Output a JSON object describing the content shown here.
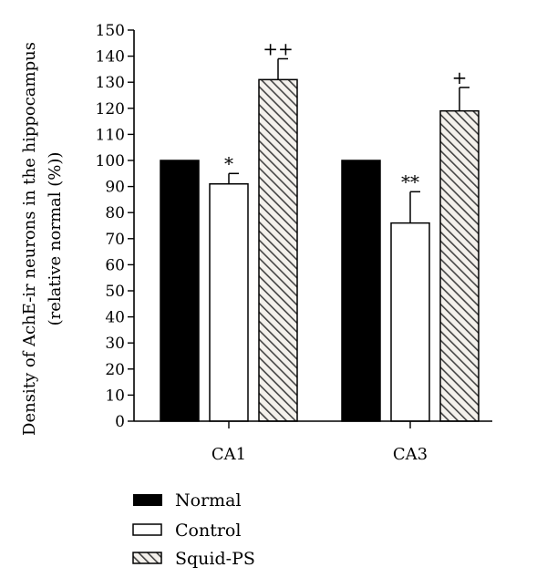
{
  "chart_data": {
    "type": "bar",
    "categories": [
      "CA1",
      "CA3"
    ],
    "series": [
      {
        "name": "Normal",
        "values": [
          100,
          100
        ],
        "errors": [
          0,
          0
        ],
        "fill": "solid-black"
      },
      {
        "name": "Control",
        "values": [
          91,
          76
        ],
        "errors": [
          4,
          12
        ],
        "fill": "white"
      },
      {
        "name": "Squid-PS",
        "values": [
          131,
          119
        ],
        "errors": [
          8,
          9
        ],
        "fill": "diagonal-hatch"
      }
    ],
    "significance": [
      {
        "series": "Control",
        "category": "CA1",
        "label": "*"
      },
      {
        "series": "Squid-PS",
        "category": "CA1",
        "label": "++"
      },
      {
        "series": "Control",
        "category": "CA3",
        "label": "**"
      },
      {
        "series": "Squid-PS",
        "category": "CA3",
        "label": "+"
      }
    ],
    "ylabel_line1": "Density of AchE-ir neurons in the hippocampus",
    "ylabel_line2": "(relative normal (%))",
    "ylim": [
      0,
      150
    ],
    "yticks": [
      0,
      10,
      20,
      30,
      40,
      50,
      60,
      70,
      80,
      90,
      100,
      110,
      120,
      130,
      140,
      150
    ],
    "grid": false,
    "legend_placement": "bottom-left"
  },
  "colors": {
    "axis": "#000000",
    "normal": "#000000",
    "control": "#ffffff",
    "hatch_line": "#444444",
    "hatch_bg": "#f4f1ec"
  }
}
